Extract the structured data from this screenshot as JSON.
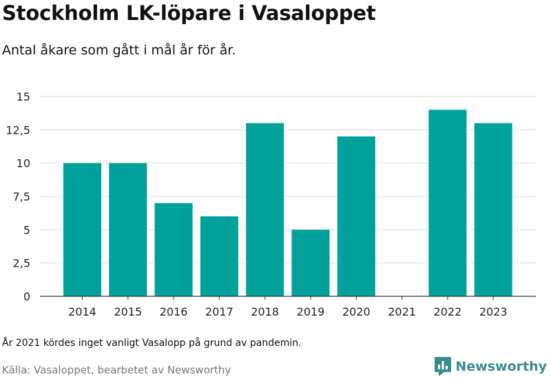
{
  "chart_data": {
    "type": "bar",
    "title": "Stockholm LK-löpare i Vasaloppet",
    "subtitle": "Antal åkare som gått i mål år för år.",
    "categories": [
      "2014",
      "2015",
      "2016",
      "2017",
      "2018",
      "2019",
      "2020",
      "2021",
      "2022",
      "2023"
    ],
    "values": [
      10,
      10,
      7,
      6,
      13,
      5,
      12,
      0,
      14,
      13
    ],
    "ylim": [
      0,
      15
    ],
    "yticks": [
      0,
      2.5,
      5,
      7.5,
      10,
      12.5,
      15
    ],
    "ytick_labels": [
      "0",
      "2,5",
      "5",
      "7,5",
      "10",
      "12,5",
      "15"
    ],
    "xlabel": "",
    "ylabel": "",
    "grid": true,
    "bar_color": "#00a19a",
    "note": "År 2021 kördes inget vanligt Vasalopp på grund av pandemin.",
    "source": "Källa: Vasaloppet, bearbetet av Newsworthy"
  },
  "brand": {
    "name": "Newsworthy",
    "icon": "newsworthy-logo-icon",
    "color": "#3b8c8c"
  }
}
